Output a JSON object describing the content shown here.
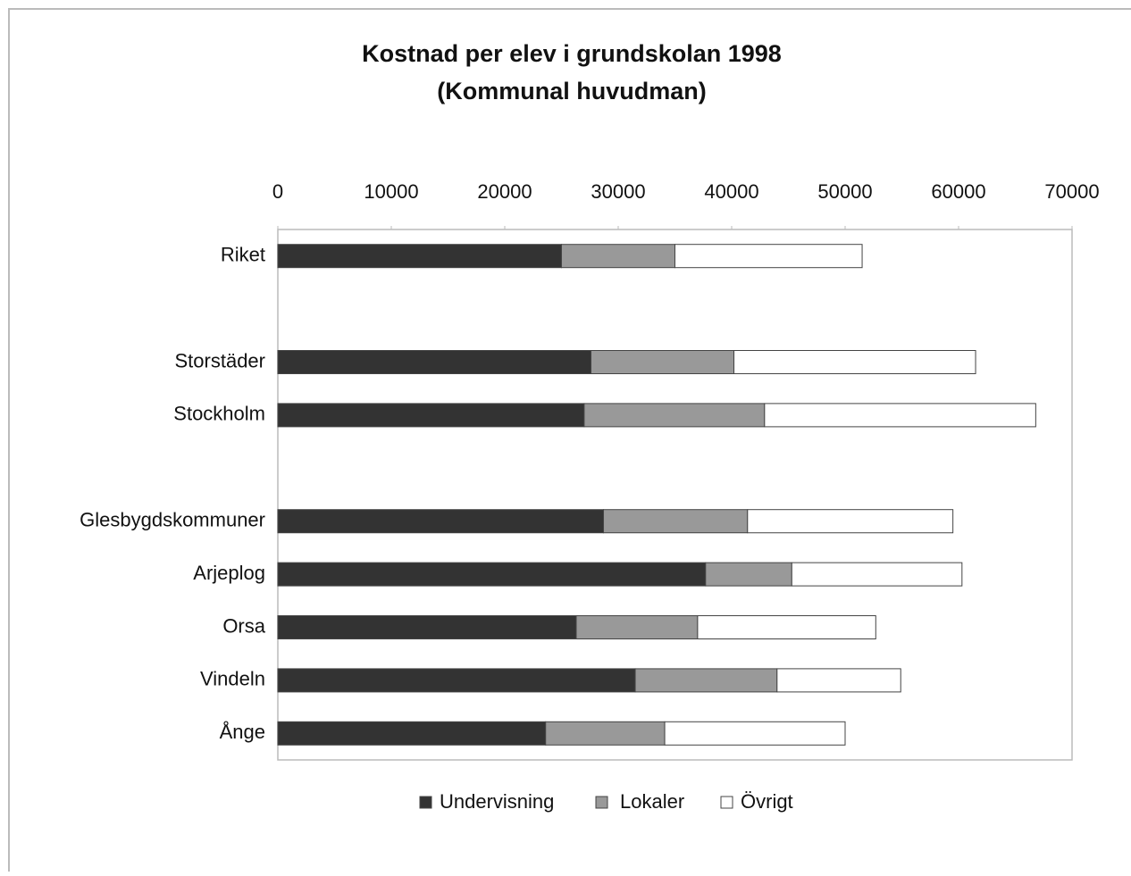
{
  "chart_data": {
    "type": "stacked_barh",
    "title": "Kostnad per elev i grundskolan 1998",
    "subtitle": "(Kommunal huvudman)",
    "categories": [
      "Riket",
      null,
      "Storstäder",
      "Stockholm",
      null,
      "Glesbygdskommuner",
      "Arjeplog",
      "Orsa",
      "Vindeln",
      "Ånge"
    ],
    "series": [
      {
        "name": "Undervisning",
        "color": "#333333",
        "values": [
          25000,
          null,
          27600,
          27000,
          null,
          28700,
          37700,
          26300,
          31500,
          23600
        ]
      },
      {
        "name": "Lokaler",
        "color": "#999999",
        "values": [
          10000,
          null,
          12600,
          15900,
          null,
          12700,
          7600,
          10700,
          12500,
          10500
        ]
      },
      {
        "name": "Övrigt",
        "color": "#ffffff",
        "values": [
          16500,
          null,
          21300,
          23900,
          null,
          18100,
          15000,
          15700,
          10900,
          15900
        ]
      }
    ],
    "xlim": [
      0,
      70000
    ],
    "xticks": [
      0,
      10000,
      20000,
      30000,
      40000,
      50000,
      60000,
      70000
    ],
    "grid": false,
    "legend": "bottom"
  }
}
